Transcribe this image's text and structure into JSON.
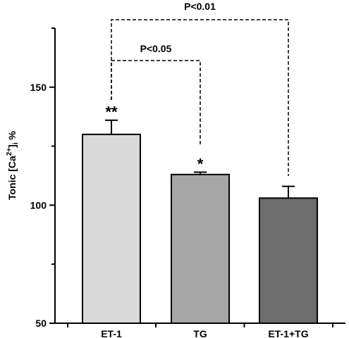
{
  "chart_data": {
    "type": "bar",
    "categories": [
      "ET-1",
      "TG",
      "ET-1+TG"
    ],
    "values": [
      130,
      113,
      103
    ],
    "errors": [
      6,
      1,
      5
    ],
    "colors": [
      "#d9d9d9",
      "#a6a6a6",
      "#6e6e6e"
    ],
    "ylim": [
      50,
      175
    ],
    "yticks": [
      50,
      100,
      150
    ],
    "ylabel": {
      "prefix": "Tonic [Ca",
      "sup": "2+",
      "mid": "]",
      "sub": "i",
      "suffix": " %"
    },
    "significance_markers": [
      "**",
      "*",
      ""
    ],
    "comparisons": [
      {
        "label": "P<0.01",
        "from": 0,
        "to": 2
      },
      {
        "label": "P<0.05",
        "from": 0,
        "to": 1
      }
    ],
    "grid": false,
    "legend": "none"
  }
}
